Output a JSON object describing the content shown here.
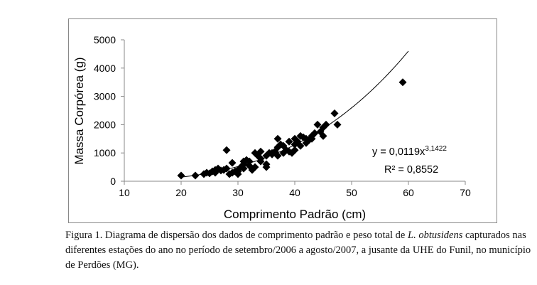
{
  "chart_data": {
    "type": "scatter",
    "xlabel": "Comprimento Padrão (cm)",
    "ylabel": "Massa Corpórea (g)",
    "xlim": [
      10,
      70
    ],
    "ylim": [
      0,
      5000
    ],
    "xticks": [
      10,
      20,
      30,
      40,
      50,
      60,
      70
    ],
    "yticks": [
      0,
      1000,
      2000,
      3000,
      4000,
      5000
    ],
    "grid": false,
    "marker": "diamond",
    "color": "#000000",
    "points": [
      [
        20,
        200
      ],
      [
        22.5,
        200
      ],
      [
        24,
        250
      ],
      [
        24.5,
        300
      ],
      [
        25,
        280
      ],
      [
        25.5,
        350
      ],
      [
        26,
        300
      ],
      [
        26,
        400
      ],
      [
        26.5,
        450
      ],
      [
        27,
        380
      ],
      [
        27.5,
        400
      ],
      [
        28,
        1100
      ],
      [
        28,
        450
      ],
      [
        28.5,
        250
      ],
      [
        29,
        300
      ],
      [
        29,
        650
      ],
      [
        29.5,
        350
      ],
      [
        30,
        250
      ],
      [
        30,
        400
      ],
      [
        30.5,
        500
      ],
      [
        31,
        600
      ],
      [
        31,
        450
      ],
      [
        31.5,
        750
      ],
      [
        32,
        700
      ],
      [
        32,
        550
      ],
      [
        32.5,
        400
      ],
      [
        33,
        500
      ],
      [
        33,
        1000
      ],
      [
        33.5,
        900
      ],
      [
        34,
        800
      ],
      [
        34,
        1050
      ],
      [
        35,
        600
      ],
      [
        35,
        500
      ],
      [
        35,
        900
      ],
      [
        35.5,
        1000
      ],
      [
        36,
        950
      ],
      [
        36.5,
        1050
      ],
      [
        37,
        900
      ],
      [
        37,
        1200
      ],
      [
        37,
        1500
      ],
      [
        37.5,
        1300
      ],
      [
        38,
        1000
      ],
      [
        38,
        1250
      ],
      [
        38.5,
        1100
      ],
      [
        39,
        1400
      ],
      [
        39,
        1050
      ],
      [
        39.5,
        1000
      ],
      [
        40,
        1300
      ],
      [
        40,
        1500
      ],
      [
        40.5,
        1400
      ],
      [
        41,
        1600
      ],
      [
        41,
        1250
      ],
      [
        41.5,
        1550
      ],
      [
        42,
        1500
      ],
      [
        42,
        1350
      ],
      [
        42.5,
        1450
      ],
      [
        43,
        1600
      ],
      [
        43.5,
        1700
      ],
      [
        44,
        2000
      ],
      [
        44.5,
        1750
      ],
      [
        45,
        1600
      ],
      [
        45,
        1900
      ],
      [
        45.5,
        2000
      ],
      [
        47,
        2400
      ],
      [
        47.5,
        2000
      ],
      [
        59,
        3500
      ],
      [
        36,
        1000
      ],
      [
        34,
        700
      ],
      [
        30,
        350
      ],
      [
        31,
        700
      ],
      [
        40,
        1100
      ],
      [
        43,
        1500
      ]
    ],
    "trendline": {
      "type": "power",
      "a": 0.0119,
      "b": 3.1422,
      "x_range": [
        20,
        60
      ]
    },
    "annotations": {
      "equation": "y = 0,0119x",
      "exponent": "3,1422",
      "r2": "R² = 0,8552"
    }
  },
  "caption": {
    "prefix": "Figura 1. Diagrama de dispersão dos dados de comprimento padrão e peso total de ",
    "species": "L. obtusidens",
    "suffix": " capturados nas diferentes estações do ano no período de setembro/2006 a agosto/2007, a jusante da UHE do Funil, no município de Perdões (MG)."
  }
}
